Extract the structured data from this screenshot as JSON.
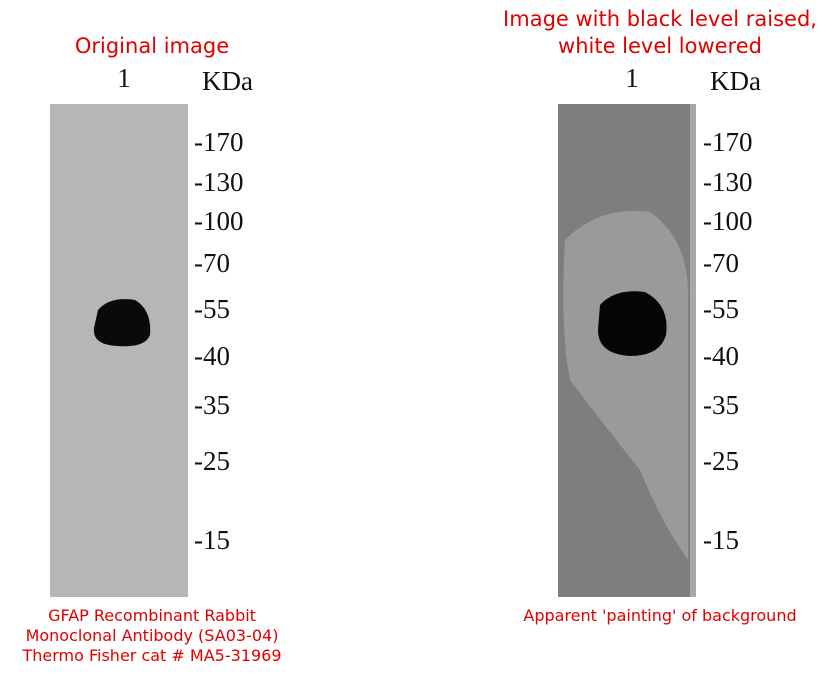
{
  "panels": [
    {
      "title": [
        "Original image"
      ],
      "lane": "1",
      "unit": "KDa",
      "markers": [
        "-170",
        "-130",
        "-100",
        "-70",
        "-55",
        "-40",
        "-35",
        "-25",
        "-15"
      ],
      "caption": [
        "GFAP Recombinant Rabbit",
        "Monoclonal Antibody (SA03-04)",
        "Thermo Fisher cat # MA5-31969"
      ]
    },
    {
      "title": [
        "Image with black level raised,",
        "white level lowered"
      ],
      "lane": "1",
      "unit": "KDa",
      "markers": [
        "-170",
        "-130",
        "-100",
        "-70",
        "-55",
        "-40",
        "-35",
        "-25",
        "-15"
      ],
      "caption": [
        "Apparent 'painting' of background"
      ]
    }
  ]
}
